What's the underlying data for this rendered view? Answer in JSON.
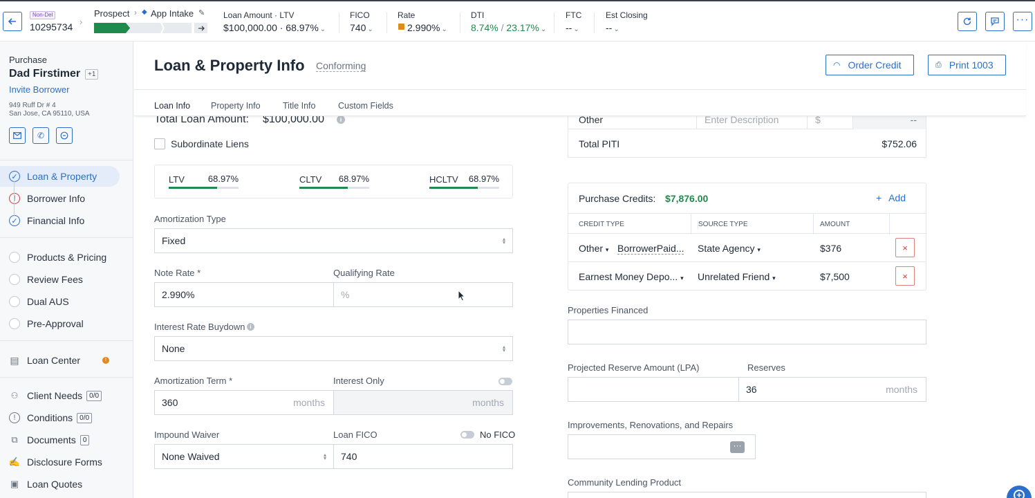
{
  "topbar": {
    "badge": "Non-Del",
    "loan_number": "10295734",
    "stage_from": "Prospect",
    "stage_to": "App Intake",
    "loan_amount_label": "Loan Amount · LTV",
    "loan_amount_value": "$100,000.00 · 68.97%",
    "fico_label": "FICO",
    "fico_value": "740",
    "rate_label": "Rate",
    "rate_value": "2.990%",
    "dti_label": "DTI",
    "dti_front": "8.74%",
    "dti_sep": "/",
    "dti_back": "23.17%",
    "ftc_label": "FTC",
    "ftc_value": "--",
    "closing_label": "Est Closing",
    "closing_value": "--",
    "progress_fraction": 0.37,
    "accent": "#1f8a4c",
    "icons": [
      "arrow-left-icon",
      "chevron-right-icon",
      "pencil-icon",
      "arrow-right-icon",
      "refresh-icon",
      "chat-icon",
      "more-icon"
    ]
  },
  "sidebar": {
    "loan_type": "Purchase",
    "borrower_name": "Dad Firstimer",
    "co_borrower_count": "+1",
    "invite_label": "Invite Borrower",
    "address_line1": "949 Ruff Dr # 4",
    "address_line2": "San Jose, CA 95110, USA",
    "steps": [
      {
        "label": "Loan & Property",
        "status": "complete",
        "active": true
      },
      {
        "label": "Borrower Info",
        "status": "error"
      },
      {
        "label": "Financial Info",
        "status": "complete"
      }
    ],
    "steps2": [
      {
        "label": "Products & Pricing"
      },
      {
        "label": "Review Fees"
      },
      {
        "label": "Dual AUS"
      },
      {
        "label": "Pre-Approval"
      }
    ],
    "loan_center": "Loan Center",
    "tools": [
      {
        "label": "Client Needs",
        "count": "0/0"
      },
      {
        "label": "Conditions",
        "count": "0/0"
      },
      {
        "label": "Documents",
        "count": "0"
      },
      {
        "label": "Disclosure Forms"
      },
      {
        "label": "Loan Quotes"
      }
    ]
  },
  "header": {
    "title": "Loan & Property Info",
    "subtitle": "Conforming",
    "order_credit": "Order Credit",
    "print": "Print 1003",
    "tabs": [
      "Loan Info",
      "Property Info",
      "Title Info",
      "Custom Fields"
    ]
  },
  "left": {
    "total_loan_label": "Total Loan Amount:",
    "total_loan_value": "$100,000.00",
    "subordinate_label": "Subordinate Liens",
    "ratios": [
      {
        "label": "LTV",
        "value": "68.97%",
        "fill": 0.6897
      },
      {
        "label": "CLTV",
        "value": "68.97%",
        "fill": 0.6897
      },
      {
        "label": "HCLTV",
        "value": "68.97%",
        "fill": 0.6897
      }
    ],
    "amortization_type_label": "Amortization Type",
    "amortization_type_value": "Fixed",
    "note_rate_label": "Note Rate *",
    "note_rate_value": "2.990%",
    "qualifying_rate_label": "Qualifying Rate",
    "qualifying_rate_placeholder": "%",
    "buydown_label": "Interest Rate Buydown",
    "buydown_value": "None",
    "amort_term_label": "Amortization Term *",
    "amort_term_value": "360",
    "months": "months",
    "interest_only_label": "Interest Only",
    "impound_label": "Impound Waiver",
    "impound_value": "None Waived",
    "loan_fico_label": "Loan FICO",
    "no_fico_label": "No FICO",
    "loan_fico_value": "740"
  },
  "right": {
    "other_label": "Other",
    "other_desc_placeholder": "Enter Description",
    "other_currency": "$",
    "other_amount": "--",
    "total_piti_label": "Total PITI",
    "total_piti_value": "$752.06",
    "credits_label": "Purchase Credits:",
    "credits_total": "$7,876.00",
    "add_label": "Add",
    "credit_columns": [
      "CREDIT TYPE",
      "SOURCE TYPE",
      "AMOUNT"
    ],
    "credit_rows": [
      {
        "type": "Other",
        "extra": "BorrowerPaid...",
        "source": "State Agency",
        "amount": "$376"
      },
      {
        "type": "Earnest Money Depo...",
        "extra": "",
        "source": "Unrelated Friend",
        "amount": "$7,500"
      }
    ],
    "properties_financed_label": "Properties Financed",
    "projected_reserve_label": "Projected Reserve Amount (LPA)",
    "reserves_label": "Reserves",
    "reserves_value": "36",
    "months": "months",
    "improvements_label": "Improvements, Renovations, and Repairs",
    "community_label": "Community Lending Product"
  }
}
